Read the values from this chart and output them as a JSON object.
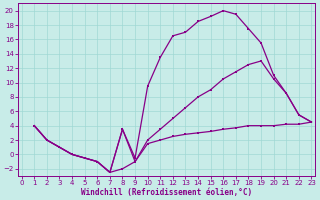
{
  "bg_color": "#c8ece8",
  "line_color": "#880088",
  "grid_color": "#a0d8d4",
  "xlim": [
    -0.3,
    23.3
  ],
  "ylim": [
    -3.0,
    21.0
  ],
  "xticks": [
    0,
    1,
    2,
    3,
    4,
    5,
    6,
    7,
    8,
    9,
    10,
    11,
    12,
    13,
    14,
    15,
    16,
    17,
    18,
    19,
    20,
    21,
    22,
    23
  ],
  "yticks": [
    -2,
    0,
    2,
    4,
    6,
    8,
    10,
    12,
    14,
    16,
    18,
    20
  ],
  "xlabel": "Windchill (Refroidissement éolien,°C)",
  "curve1_x": [
    1,
    2,
    3,
    4,
    5,
    6,
    7,
    8,
    9,
    10,
    11,
    12,
    13,
    14,
    15,
    16,
    17,
    18,
    19,
    20,
    21,
    22,
    23
  ],
  "curve1_y": [
    4,
    2,
    1,
    0,
    -0.5,
    -1,
    -2.5,
    3.5,
    -0.5,
    9.5,
    13.5,
    16.5,
    17,
    18.5,
    19.2,
    20.0,
    19.5,
    17.5,
    15.5,
    11,
    8.5,
    5.5,
    4.5
  ],
  "curve2_x": [
    1,
    2,
    3,
    4,
    5,
    6,
    7,
    8,
    9,
    10,
    11,
    12,
    13,
    14,
    15,
    16,
    17,
    18,
    19,
    20,
    21,
    22,
    23
  ],
  "curve2_y": [
    4,
    2,
    1,
    0,
    -0.5,
    -1,
    -2.5,
    -2,
    -1,
    2,
    3.5,
    5,
    6.5,
    8,
    9,
    10.5,
    11.5,
    12.5,
    13.0,
    10.5,
    8.5,
    5.5,
    4.5
  ],
  "curve3_x": [
    1,
    2,
    3,
    4,
    5,
    6,
    7,
    8,
    9,
    10,
    11,
    12,
    13,
    14,
    15,
    16,
    17,
    18,
    19,
    20,
    21,
    22,
    23
  ],
  "curve3_y": [
    4,
    2,
    1,
    0,
    -0.5,
    -1,
    -2.5,
    3.5,
    -1,
    1.5,
    2.0,
    2.5,
    2.8,
    3.0,
    3.2,
    3.5,
    3.7,
    4.0,
    4.0,
    4.0,
    4.2,
    4.2,
    4.5
  ],
  "marker_size": 2.0,
  "line_width": 0.9,
  "tick_fontsize": 5.0,
  "xlabel_fontsize": 5.5
}
